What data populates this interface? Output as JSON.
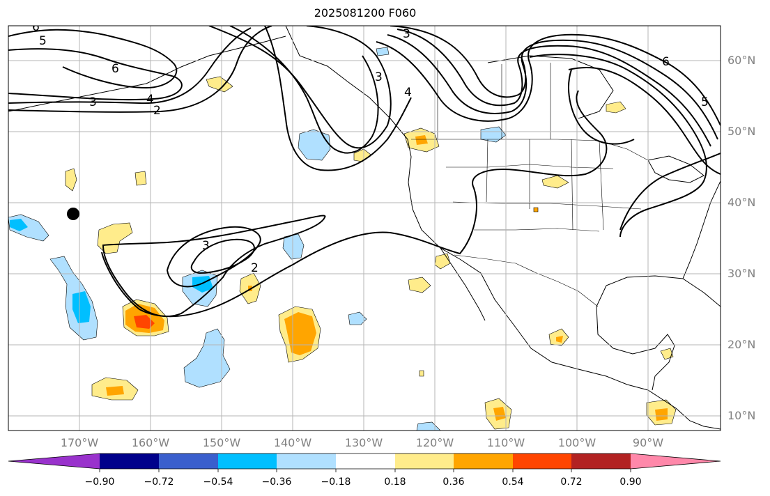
{
  "title": "2025081200 F060",
  "lat_labels": [
    "60°N",
    "50°N",
    "40°N",
    "30°N",
    "20°N",
    "10°N"
  ],
  "lon_labels": [
    "170°W",
    "160°W",
    "150°W",
    "140°W",
    "130°W",
    "120°W",
    "110°W",
    "100°W",
    "90°W"
  ],
  "colorbar": {
    "colors": [
      "#9932cc",
      "#00008b",
      "#3a5fcd",
      "#00bfff",
      "#b0e0ff",
      "#ffffff",
      "#ffec8b",
      "#ffa500",
      "#ff4500",
      "#b22222",
      "#ff88aa"
    ],
    "tick_labels": [
      "−0.90",
      "−0.72",
      "−0.54",
      "−0.36",
      "−0.18",
      "0.18",
      "0.36",
      "0.54",
      "0.72",
      "0.90"
    ]
  },
  "contour_labels": [
    "6",
    "5",
    "6",
    "3",
    "4",
    "2",
    "3",
    "3",
    "4",
    "6",
    "5",
    "3",
    "2"
  ],
  "marker": "black-dot"
}
